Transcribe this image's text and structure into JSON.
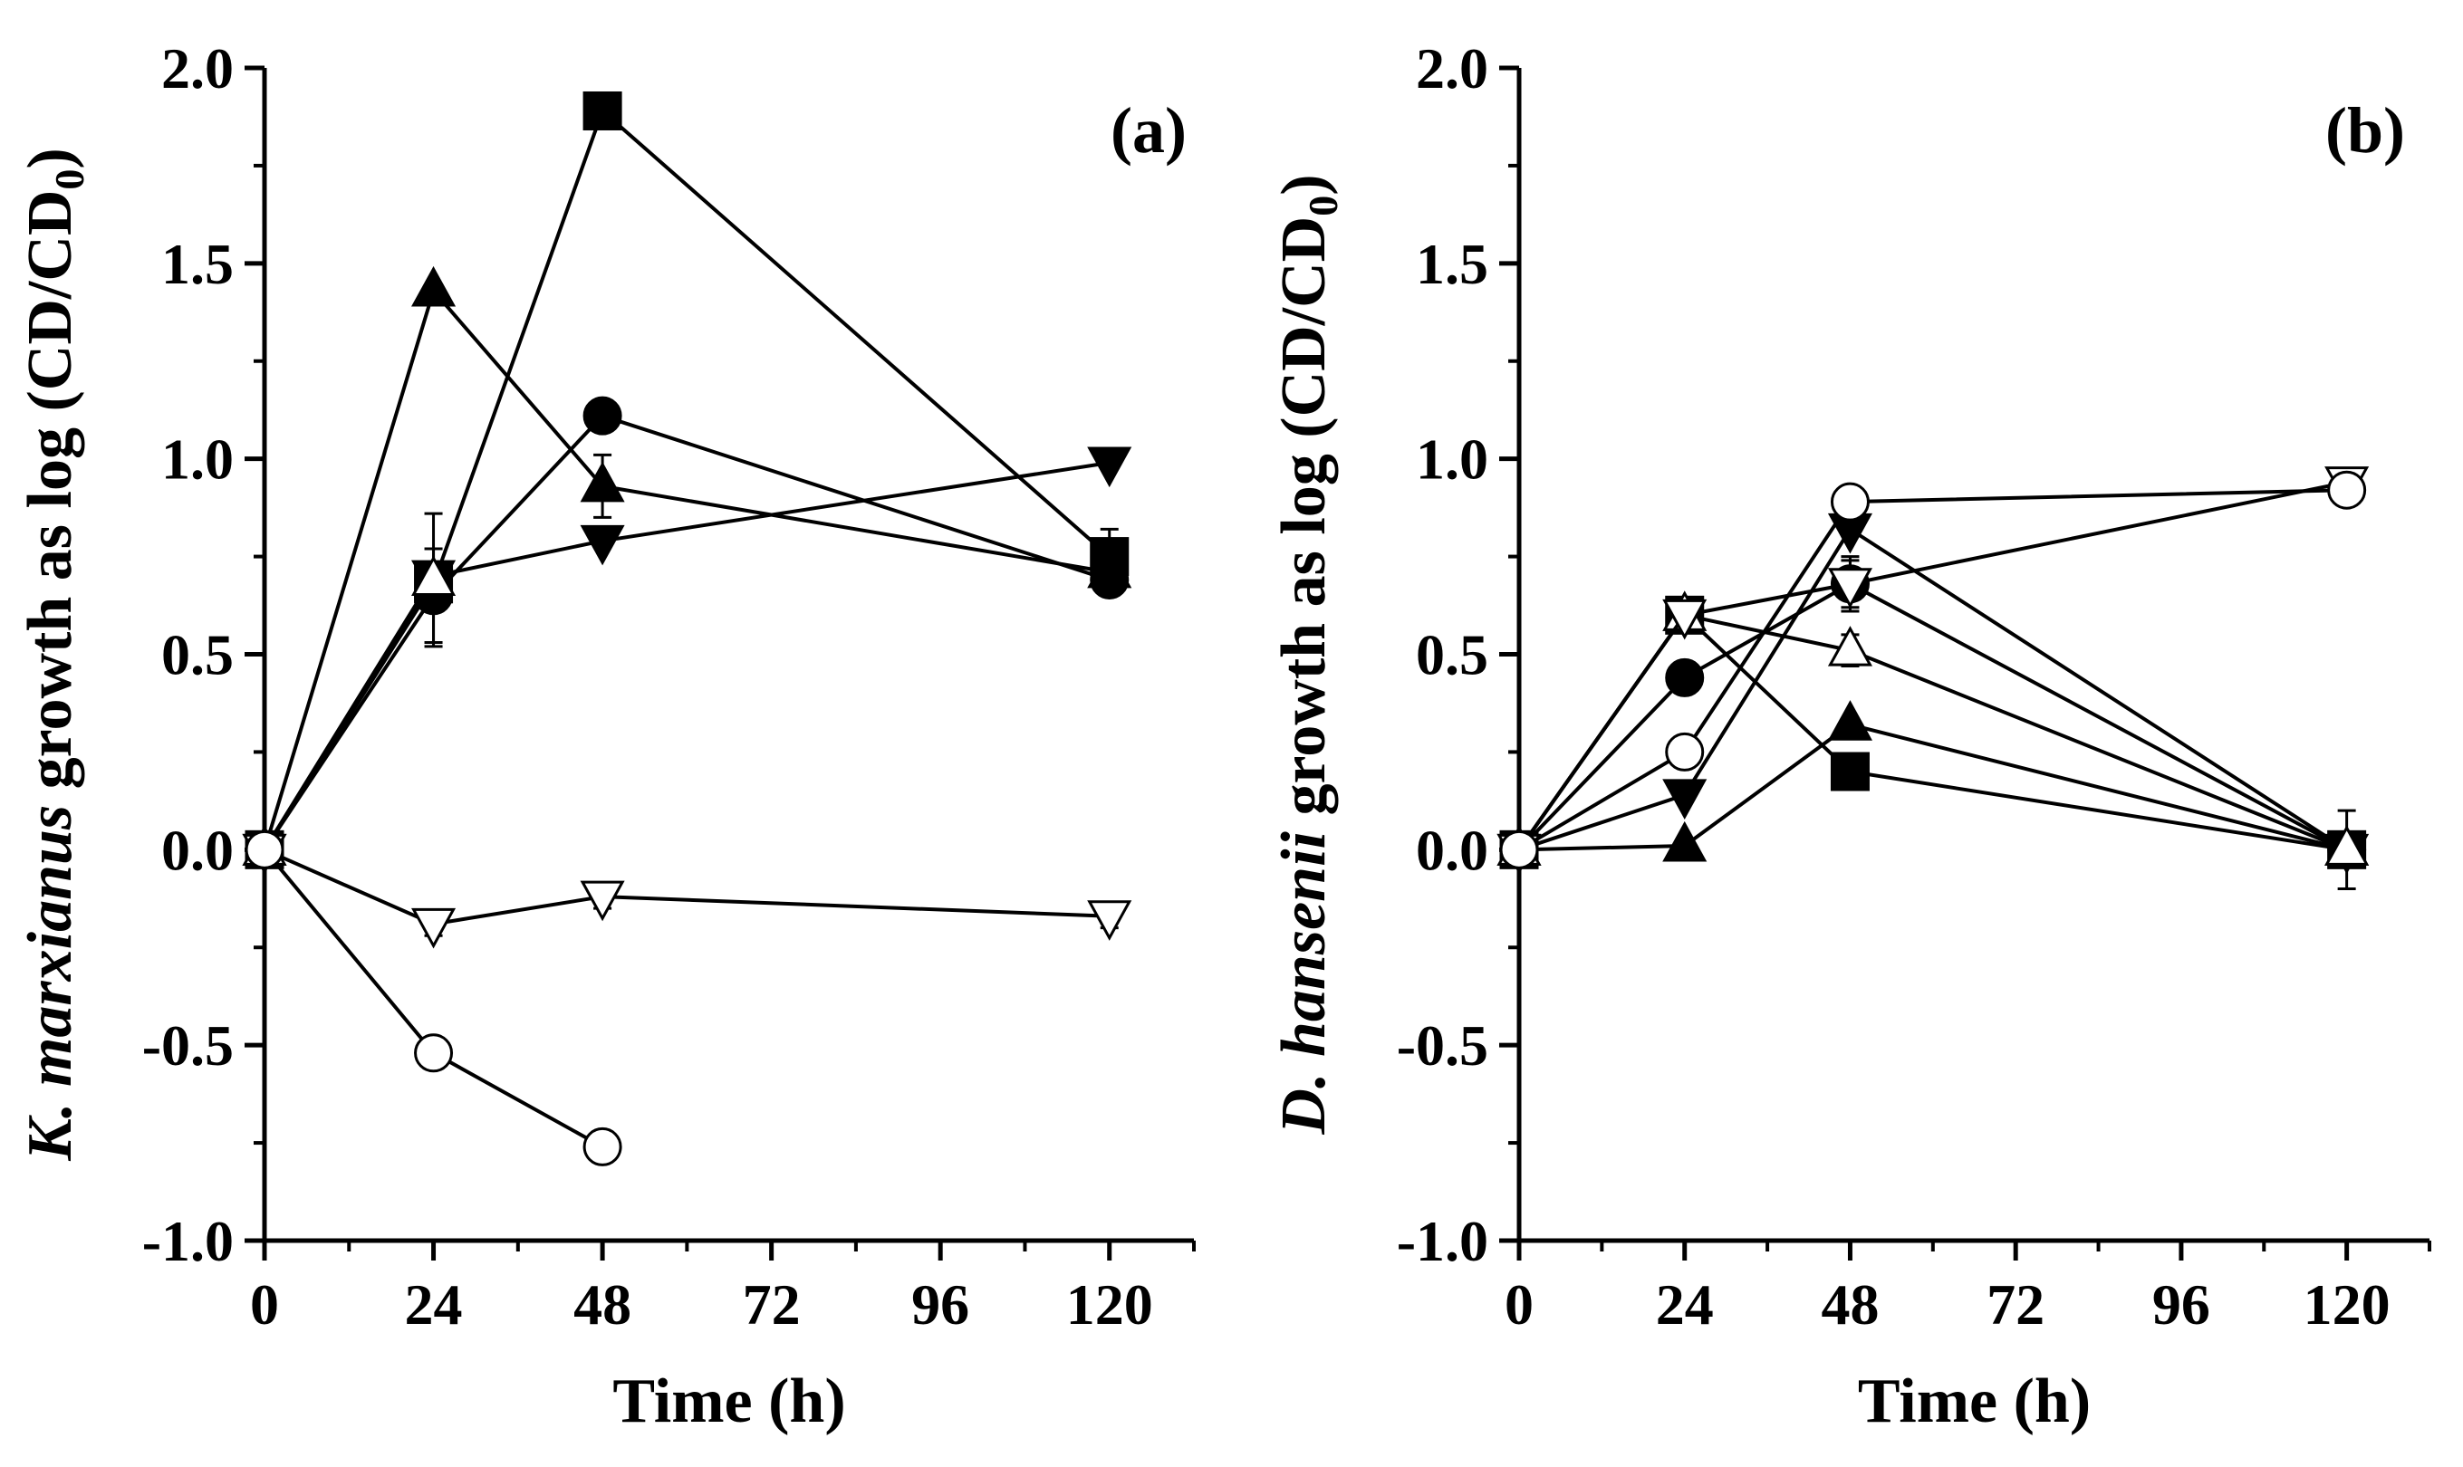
{
  "chart_data": [
    {
      "type": "line",
      "panel_label": "(a)",
      "xlabel": "Time (h)",
      "ylabel_parts": [
        {
          "text": "K. marxianus",
          "italic": true
        },
        {
          "text": " growth as log (CD/CD",
          "italic": false
        },
        {
          "text": "0",
          "sub": true
        },
        {
          "text": ")",
          "italic": false
        }
      ],
      "xlim": [
        0,
        132
      ],
      "ylim": [
        -1.0,
        2.0
      ],
      "xticks": [
        0,
        24,
        48,
        72,
        96,
        120
      ],
      "xtick_labels": [
        "0",
        "24",
        "48",
        "72",
        "96",
        "120"
      ],
      "yticks": [
        -1.0,
        -0.5,
        0.0,
        0.5,
        1.0,
        1.5,
        2.0
      ],
      "ytick_labels": [
        "-1.0",
        "-0.5",
        "0.0",
        "0.5",
        "1.0",
        "1.5",
        "2.0"
      ],
      "grid": false,
      "series": [
        {
          "name": "filled-square",
          "marker": "square",
          "filled": true,
          "x": [
            0,
            24,
            48,
            120
          ],
          "y": [
            0.0,
            0.68,
            1.89,
            0.75
          ],
          "err": [
            0,
            0,
            0,
            0.07
          ]
        },
        {
          "name": "filled-triangle-up",
          "marker": "triangle-up",
          "filled": true,
          "x": [
            0,
            24,
            48,
            120
          ],
          "y": [
            0.0,
            1.43,
            0.93,
            0.71
          ],
          "err": [
            0,
            0,
            0.08,
            0
          ]
        },
        {
          "name": "filled-circle",
          "marker": "circle",
          "filled": true,
          "x": [
            0,
            24,
            48,
            120
          ],
          "y": [
            0.0,
            0.65,
            1.11,
            0.69
          ],
          "err": [
            0,
            0.12,
            0,
            0
          ]
        },
        {
          "name": "filled-triangle-down",
          "marker": "triangle-down",
          "filled": true,
          "x": [
            0,
            24,
            48,
            120
          ],
          "y": [
            0.0,
            0.7,
            0.79,
            0.99
          ],
          "err": [
            0,
            0,
            0,
            0
          ]
        },
        {
          "name": "open-triangle-up",
          "marker": "triangle-up",
          "filled": false,
          "x": [
            0,
            24
          ],
          "y": [
            0.0,
            0.69
          ],
          "err": [
            0,
            0.17
          ]
        },
        {
          "name": "open-triangle-down",
          "marker": "triangle-down",
          "filled": false,
          "x": [
            0,
            24,
            48,
            120
          ],
          "y": [
            0.0,
            -0.19,
            -0.12,
            -0.17
          ],
          "err": [
            0,
            0.03,
            0.03,
            0.03
          ]
        },
        {
          "name": "open-circle",
          "marker": "circle",
          "filled": false,
          "x": [
            0,
            24,
            48
          ],
          "y": [
            0.0,
            -0.52,
            -0.76
          ],
          "err": [
            0,
            0.03,
            0.03
          ]
        }
      ]
    },
    {
      "type": "line",
      "panel_label": "(b)",
      "xlabel": "Time (h)",
      "ylabel_parts": [
        {
          "text": "D. hansenii",
          "italic": true
        },
        {
          "text": " growth as log (CD/CD",
          "italic": false
        },
        {
          "text": "0",
          "sub": true
        },
        {
          "text": ")",
          "italic": false
        }
      ],
      "xlim": [
        0,
        132
      ],
      "ylim": [
        -1.0,
        2.0
      ],
      "xticks": [
        0,
        24,
        48,
        72,
        96,
        120
      ],
      "xtick_labels": [
        "0",
        "24",
        "48",
        "72",
        "96",
        "120"
      ],
      "yticks": [
        -1.0,
        -0.5,
        0.0,
        0.5,
        1.0,
        1.5,
        2.0
      ],
      "ytick_labels": [
        "-1.0",
        "-0.5",
        "0.0",
        "0.5",
        "1.0",
        "1.5",
        "2.0"
      ],
      "grid": false,
      "series": [
        {
          "name": "filled-square",
          "marker": "square",
          "filled": true,
          "x": [
            0,
            24,
            48,
            120
          ],
          "y": [
            0.0,
            0.6,
            0.2,
            0.0
          ],
          "err": [
            0,
            0,
            0,
            0.1
          ]
        },
        {
          "name": "filled-triangle-up",
          "marker": "triangle-up",
          "filled": true,
          "x": [
            0,
            24,
            48,
            120
          ],
          "y": [
            0.0,
            0.01,
            0.32,
            0.0
          ],
          "err": [
            0,
            0,
            0,
            0
          ]
        },
        {
          "name": "filled-circle",
          "marker": "circle",
          "filled": true,
          "x": [
            0,
            24,
            48,
            120
          ],
          "y": [
            0.0,
            0.44,
            0.68,
            0.0
          ],
          "err": [
            0,
            0,
            0.07,
            0
          ]
        },
        {
          "name": "filled-triangle-down",
          "marker": "triangle-down",
          "filled": true,
          "x": [
            0,
            24,
            48,
            120
          ],
          "y": [
            0.0,
            0.14,
            0.82,
            0.0
          ],
          "err": [
            0,
            0,
            0,
            0
          ]
        },
        {
          "name": "open-triangle-up",
          "marker": "triangle-up",
          "filled": false,
          "x": [
            0,
            24,
            48,
            120
          ],
          "y": [
            0.0,
            0.6,
            0.51,
            0.0
          ],
          "err": [
            0,
            0,
            0.04,
            0
          ]
        },
        {
          "name": "open-triangle-down",
          "marker": "triangle-down",
          "filled": false,
          "x": [
            0,
            24,
            48,
            120
          ],
          "y": [
            0.0,
            0.6,
            0.68,
            0.94
          ],
          "err": [
            0,
            0,
            0.06,
            0.02
          ]
        },
        {
          "name": "open-circle",
          "marker": "circle",
          "filled": false,
          "x": [
            0,
            24,
            48,
            120
          ],
          "y": [
            0.0,
            0.25,
            0.89,
            0.92
          ],
          "err": [
            0,
            0.03,
            0.03,
            0.03
          ]
        }
      ]
    }
  ]
}
